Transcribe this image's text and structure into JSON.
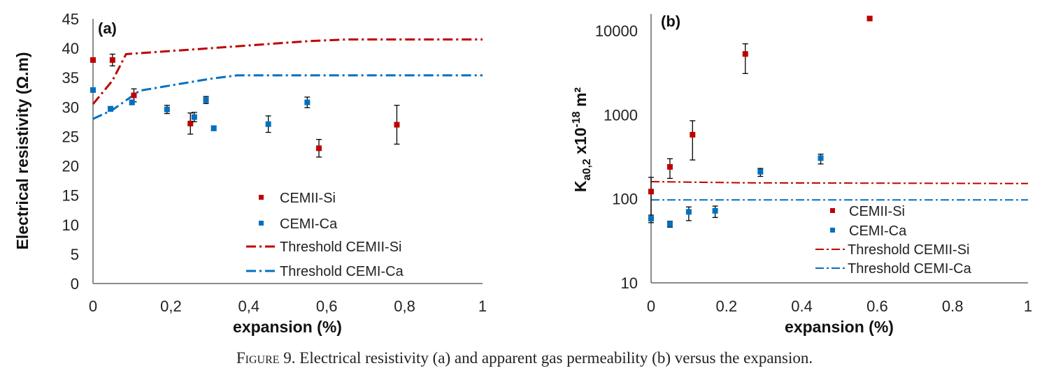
{
  "caption": {
    "figure_label": "Figure 9.",
    "text": "Electrical resistivity (a) and apparent gas permeability (b) versus the expansion."
  },
  "colors": {
    "si": "#c00000",
    "ca": "#0070c0"
  },
  "chart_data": [
    {
      "panel": "(a)",
      "type": "scatter",
      "xlabel": "expansion (%)",
      "ylabel": "Electrical resistivity (Ω.m)",
      "xlim": [
        0,
        1
      ],
      "ylim": [
        0,
        45
      ],
      "x_ticks": [
        "0",
        "0,2",
        "0,4",
        "0,6",
        "0,8",
        "1"
      ],
      "y_ticks": [
        "0",
        "5",
        "10",
        "15",
        "20",
        "25",
        "30",
        "35",
        "40",
        "45"
      ],
      "legend_position": "center-right",
      "series": [
        {
          "name": "CEMII-Si",
          "kind": "points",
          "color": "#c00000",
          "points": [
            {
              "x": 0.0,
              "y": 38.0,
              "err": 0
            },
            {
              "x": 0.05,
              "y": 38.0,
              "err": 1.0
            },
            {
              "x": 0.105,
              "y": 32.0,
              "err": 1.1
            },
            {
              "x": 0.25,
              "y": 27.2,
              "err": 1.8
            },
            {
              "x": 0.58,
              "y": 23.0,
              "err": 1.5
            },
            {
              "x": 0.78,
              "y": 27.0,
              "err": 3.3
            }
          ]
        },
        {
          "name": "CEMI-Ca",
          "kind": "points",
          "color": "#0070c0",
          "points": [
            {
              "x": 0.0,
              "y": 32.9,
              "err": 0
            },
            {
              "x": 0.045,
              "y": 29.7,
              "err": 0.4
            },
            {
              "x": 0.1,
              "y": 30.8,
              "err": 0.4
            },
            {
              "x": 0.19,
              "y": 29.6,
              "err": 0.7
            },
            {
              "x": 0.26,
              "y": 28.3,
              "err": 0.8
            },
            {
              "x": 0.29,
              "y": 31.2,
              "err": 0.6
            },
            {
              "x": 0.31,
              "y": 26.4,
              "err": 0.4
            },
            {
              "x": 0.45,
              "y": 27.1,
              "err": 1.4
            },
            {
              "x": 0.55,
              "y": 30.8,
              "err": 0.9
            }
          ]
        },
        {
          "name": "Threshold CEMII-Si",
          "kind": "threshold",
          "color": "#c00000",
          "points": [
            {
              "x": 0.0,
              "y": 30.5
            },
            {
              "x": 0.05,
              "y": 34.5
            },
            {
              "x": 0.085,
              "y": 39.0
            },
            {
              "x": 0.3,
              "y": 40.0
            },
            {
              "x": 0.55,
              "y": 41.2
            },
            {
              "x": 0.65,
              "y": 41.5
            },
            {
              "x": 1.0,
              "y": 41.5
            }
          ]
        },
        {
          "name": "Threshold CEMI-Ca",
          "kind": "threshold",
          "color": "#0070c0",
          "points": [
            {
              "x": 0.0,
              "y": 28.0
            },
            {
              "x": 0.05,
              "y": 29.5
            },
            {
              "x": 0.12,
              "y": 32.8
            },
            {
              "x": 0.3,
              "y": 34.8
            },
            {
              "x": 0.37,
              "y": 35.4
            },
            {
              "x": 1.0,
              "y": 35.4
            }
          ]
        }
      ]
    },
    {
      "panel": "(b)",
      "type": "scatter",
      "xlabel": "expansion (%)",
      "ylabel_main": "K",
      "ylabel_sub": "a0,2",
      "ylabel_mid": " x10",
      "ylabel_sup": "-18",
      "ylabel_end": " m²",
      "xlim": [
        0,
        1
      ],
      "ylim": [
        10,
        15000
      ],
      "y_scale": "log",
      "x_ticks": [
        "0",
        "0.2",
        "0.4",
        "0.6",
        "0.8",
        "1"
      ],
      "y_ticks": [
        {
          "value": 10,
          "label": "10"
        },
        {
          "value": 100,
          "label": "100"
        },
        {
          "value": 1000,
          "label": "1000"
        },
        {
          "value": 10000,
          "label": "10000"
        }
      ],
      "legend_position": "center-right",
      "series": [
        {
          "name": "CEMII-Si",
          "kind": "points",
          "color": "#c00000",
          "points": [
            {
              "x": 0.0,
              "y": 122,
              "lo": 60,
              "hi": 180
            },
            {
              "x": 0.05,
              "y": 240,
              "lo": 175,
              "hi": 300
            },
            {
              "x": 0.11,
              "y": 580,
              "lo": 290,
              "hi": 850
            },
            {
              "x": 0.25,
              "y": 5300,
              "lo": 3100,
              "hi": 7000
            },
            {
              "x": 0.58,
              "y": 14000,
              "lo": 13500,
              "hi": 14500
            }
          ]
        },
        {
          "name": "CEMI-Ca",
          "kind": "points",
          "color": "#0070c0",
          "points": [
            {
              "x": 0.0,
              "y": 58,
              "lo": 52,
              "hi": 64
            },
            {
              "x": 0.05,
              "y": 50,
              "lo": 46,
              "hi": 54
            },
            {
              "x": 0.1,
              "y": 70,
              "lo": 55,
              "hi": 80
            },
            {
              "x": 0.17,
              "y": 72,
              "lo": 60,
              "hi": 82
            },
            {
              "x": 0.29,
              "y": 210,
              "lo": 185,
              "hi": 230
            },
            {
              "x": 0.45,
              "y": 305,
              "lo": 260,
              "hi": 340
            }
          ]
        },
        {
          "name": "Threshold CEMII-Si",
          "kind": "threshold",
          "color": "#c00000",
          "points": [
            {
              "x": 0.0,
              "y": 160
            },
            {
              "x": 0.25,
              "y": 155
            },
            {
              "x": 1.0,
              "y": 152
            }
          ]
        },
        {
          "name": "Threshold CEMI-Ca",
          "kind": "threshold",
          "color": "#0070c0",
          "points": [
            {
              "x": 0.0,
              "y": 97
            },
            {
              "x": 1.0,
              "y": 97
            }
          ]
        }
      ]
    }
  ]
}
